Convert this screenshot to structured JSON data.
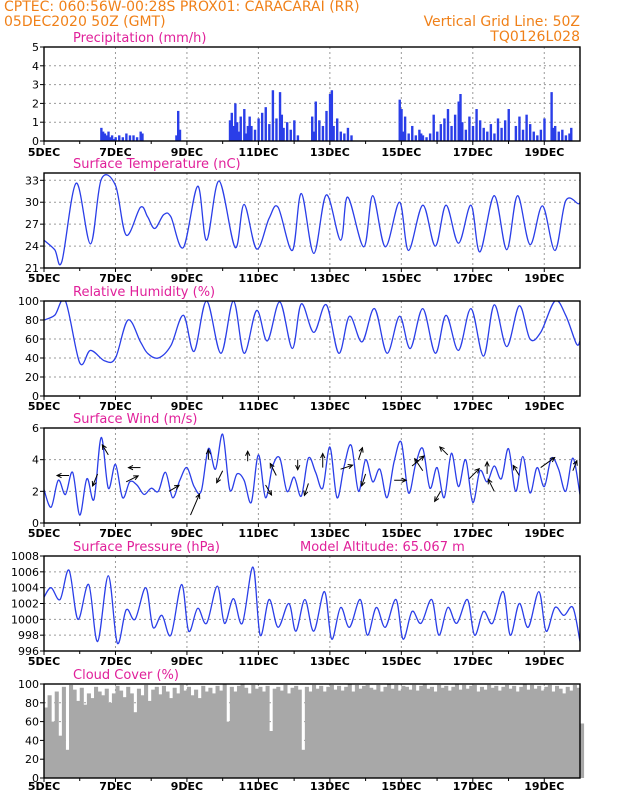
{
  "header": {
    "title": "CPTEC:   060:56W-00:28S   PROX01: CARACARAI (RR)",
    "datetime": "05DEC2020 50Z (GMT)",
    "grid_note": "Vertical Grid Line: 50Z",
    "code": "TQ0126L028"
  },
  "colors": {
    "header": "#f08018",
    "title": "#e0209a",
    "line": "#2a3ee8",
    "bar": "#2a3ee8",
    "cloud": "#a8a8a8",
    "grid": "#9a9a9a"
  },
  "x_axis": {
    "start_day": 5,
    "end_day": 20,
    "tick_days": [
      5,
      7,
      9,
      11,
      13,
      15,
      17,
      19
    ],
    "tick_labels": [
      "5DEC",
      "7DEC",
      "9DEC",
      "11DEC",
      "13DEC",
      "15DEC",
      "17DEC",
      "19DEC"
    ]
  },
  "chart_data": [
    {
      "type": "bar",
      "title": "Precipitation (mm/h)",
      "ylim": [
        0,
        5
      ],
      "yticks": [
        0,
        1,
        2,
        3,
        4,
        5
      ],
      "x": [
        6.6,
        6.65,
        6.7,
        6.75,
        6.8,
        6.85,
        6.9,
        6.95,
        7.0,
        7.1,
        7.2,
        7.3,
        7.4,
        7.5,
        7.6,
        7.7,
        7.75,
        8.7,
        8.75,
        8.8,
        10.2,
        10.25,
        10.3,
        10.35,
        10.4,
        10.45,
        10.5,
        10.6,
        10.65,
        10.7,
        10.75,
        10.8,
        10.9,
        11.0,
        11.1,
        11.2,
        11.3,
        11.4,
        11.5,
        11.6,
        11.65,
        11.7,
        11.8,
        11.9,
        12.0,
        12.1,
        12.5,
        12.55,
        12.6,
        12.7,
        12.8,
        12.9,
        13.0,
        13.05,
        13.1,
        13.2,
        13.3,
        13.4,
        13.5,
        13.6,
        14.95,
        15.0,
        15.05,
        15.1,
        15.2,
        15.3,
        15.4,
        15.5,
        15.55,
        15.6,
        15.7,
        15.8,
        15.9,
        16.0,
        16.1,
        16.2,
        16.3,
        16.4,
        16.5,
        16.6,
        16.65,
        16.7,
        16.8,
        16.9,
        17.0,
        17.1,
        17.2,
        17.3,
        17.4,
        17.5,
        17.6,
        17.7,
        17.8,
        17.9,
        18.0,
        18.2,
        18.3,
        18.4,
        18.5,
        18.6,
        18.7,
        18.8,
        18.9,
        19.0,
        19.2,
        19.25,
        19.3,
        19.4,
        19.5,
        19.6,
        19.7,
        19.75
      ],
      "values": [
        0.7,
        0.5,
        0.4,
        0.3,
        0.5,
        0.2,
        0.3,
        0.1,
        0.2,
        0.3,
        0.2,
        0.4,
        0.3,
        0.3,
        0.2,
        0.5,
        0.4,
        0.3,
        1.6,
        0.6,
        1.1,
        1.5,
        0.8,
        2.0,
        1.0,
        0.5,
        1.3,
        1.7,
        0.4,
        0.8,
        1.3,
        0.8,
        0.6,
        1.2,
        1.5,
        1.8,
        0.9,
        2.7,
        1.2,
        2.6,
        1.4,
        0.7,
        1.0,
        0.6,
        1.1,
        0.3,
        1.3,
        0.5,
        2.1,
        1.1,
        0.8,
        1.6,
        2.5,
        2.7,
        0.8,
        1.2,
        0.5,
        0.4,
        0.7,
        0.3,
        2.2,
        1.7,
        0.5,
        1.3,
        0.4,
        0.8,
        0.3,
        0.6,
        0.4,
        0.3,
        0.2,
        0.4,
        1.4,
        0.5,
        0.9,
        1.2,
        1.7,
        0.8,
        1.4,
        2.1,
        2.5,
        1.0,
        0.6,
        1.3,
        0.8,
        1.7,
        1.1,
        0.7,
        0.5,
        0.9,
        0.4,
        1.2,
        0.7,
        1.1,
        1.7,
        0.8,
        1.3,
        0.6,
        1.4,
        0.9,
        0.5,
        0.3,
        0.6,
        1.2,
        2.6,
        0.7,
        0.8,
        0.5,
        0.6,
        0.3,
        0.4,
        0.7
      ]
    },
    {
      "type": "line",
      "title": "Surface Temperature (nC)",
      "ylim": [
        21,
        34
      ],
      "yticks": [
        21,
        24,
        27,
        30,
        33
      ],
      "x": [
        5.0,
        5.3,
        5.5,
        5.9,
        6.3,
        6.6,
        7.0,
        7.3,
        7.7,
        7.9,
        8.1,
        8.35,
        8.55,
        8.9,
        9.3,
        9.55,
        9.9,
        10.35,
        10.6,
        10.95,
        11.3,
        11.55,
        11.95,
        12.2,
        12.55,
        12.9,
        13.3,
        13.5,
        13.95,
        14.2,
        14.55,
        14.95,
        15.2,
        15.6,
        15.95,
        16.25,
        16.6,
        16.95,
        17.2,
        17.6,
        17.95,
        18.25,
        18.6,
        18.95,
        19.3,
        19.6,
        19.95,
        20.0
      ],
      "values": [
        24.8,
        23.5,
        21.9,
        32.6,
        24.3,
        33.1,
        32.3,
        25.5,
        29.3,
        28.0,
        26.4,
        28.3,
        28.0,
        23.8,
        32.2,
        24.8,
        32.9,
        23.8,
        29.7,
        23.6,
        27.8,
        29.3,
        23.4,
        31.2,
        23.0,
        31.0,
        24.8,
        30.7,
        23.9,
        30.9,
        23.9,
        30.0,
        23.4,
        29.6,
        24.0,
        29.6,
        24.4,
        29.6,
        23.2,
        30.9,
        23.5,
        30.9,
        24.2,
        29.5,
        23.4,
        30.2,
        29.8,
        30.0
      ]
    },
    {
      "type": "line",
      "title": "Relative Humidity (%)",
      "ylim": [
        0,
        100
      ],
      "yticks": [
        0,
        20,
        40,
        60,
        80,
        100
      ],
      "x": [
        5.0,
        5.3,
        5.6,
        6.0,
        6.3,
        6.7,
        7.0,
        7.35,
        7.7,
        7.9,
        8.2,
        8.55,
        8.9,
        9.2,
        9.55,
        9.95,
        10.3,
        10.6,
        10.95,
        11.25,
        11.6,
        11.95,
        12.2,
        12.55,
        12.9,
        13.25,
        13.55,
        13.9,
        14.25,
        14.6,
        14.95,
        15.25,
        15.6,
        15.95,
        16.25,
        16.6,
        16.95,
        17.3,
        17.6,
        17.95,
        18.3,
        18.6,
        18.9,
        19.3,
        19.6,
        19.9,
        20.0
      ],
      "values": [
        80,
        85,
        100,
        35,
        48,
        37,
        40,
        80,
        57,
        45,
        40,
        53,
        85,
        47,
        100,
        45,
        100,
        45,
        90,
        58,
        99,
        50,
        97,
        67,
        96,
        45,
        84,
        57,
        92,
        45,
        84,
        50,
        92,
        45,
        85,
        48,
        92,
        42,
        96,
        52,
        95,
        60,
        67,
        100,
        85,
        55,
        58
      ]
    },
    {
      "type": "line",
      "title": "Surface Wind (m/s)",
      "ylim": [
        0,
        6
      ],
      "yticks": [
        0,
        2,
        4,
        6
      ],
      "x": [
        5.0,
        5.2,
        5.4,
        5.6,
        5.8,
        6.0,
        6.2,
        6.4,
        6.6,
        6.8,
        7.0,
        7.2,
        7.4,
        7.6,
        7.8,
        8.0,
        8.2,
        8.4,
        8.6,
        8.8,
        9.0,
        9.2,
        9.4,
        9.6,
        9.8,
        10.0,
        10.2,
        10.4,
        10.6,
        10.8,
        11.0,
        11.2,
        11.4,
        11.6,
        11.8,
        12.0,
        12.2,
        12.4,
        12.6,
        12.8,
        13.0,
        13.2,
        13.4,
        13.6,
        13.8,
        14.0,
        14.2,
        14.4,
        14.6,
        14.8,
        15.0,
        15.2,
        15.4,
        15.6,
        15.8,
        16.0,
        16.2,
        16.4,
        16.6,
        16.8,
        17.0,
        17.2,
        17.4,
        17.6,
        17.8,
        18.0,
        18.2,
        18.4,
        18.6,
        18.8,
        19.0,
        19.2,
        19.4,
        19.6,
        19.8,
        20.0
      ],
      "values": [
        2.1,
        1.0,
        2.7,
        1.8,
        3.2,
        0.5,
        2.8,
        1.5,
        5.4,
        2.2,
        3.7,
        1.6,
        2.6,
        2.4,
        1.8,
        2.2,
        2.0,
        3.2,
        1.6,
        2.7,
        3.5,
        2.3,
        2.0,
        4.7,
        3.4,
        5.6,
        2.1,
        3.1,
        2.7,
        1.3,
        4.3,
        1.6,
        3.6,
        4.1,
        2.0,
        2.9,
        1.7,
        4.1,
        3.2,
        2.2,
        4.8,
        1.6,
        3.6,
        4.9,
        2.0,
        4.0,
        2.6,
        3.4,
        1.6,
        3.9,
        5.1,
        1.9,
        3.7,
        4.7,
        2.2,
        3.5,
        1.6,
        4.4,
        2.3,
        4.0,
        1.3,
        3.3,
        2.6,
        3.6,
        2.8,
        4.7,
        2.0,
        4.2,
        1.9,
        3.5,
        2.3,
        4.1,
        3.4,
        2.0,
        4.1,
        1.8
      ],
      "vectors": [
        {
          "x": 5.7,
          "y": 3.0,
          "dx": -12,
          "dy": 0
        },
        {
          "x": 6.5,
          "y": 3.1,
          "dx": -5,
          "dy": 12
        },
        {
          "x": 6.8,
          "y": 4.3,
          "dx": -6,
          "dy": -10
        },
        {
          "x": 7.3,
          "y": 2.6,
          "dx": 12,
          "dy": -6
        },
        {
          "x": 7.7,
          "y": 3.5,
          "dx": -12,
          "dy": 0
        },
        {
          "x": 8.5,
          "y": 2.0,
          "dx": 10,
          "dy": -6
        },
        {
          "x": 9.1,
          "y": 0.5,
          "dx": 9,
          "dy": -21
        },
        {
          "x": 9.6,
          "y": 4.0,
          "dx": 0,
          "dy": -10
        },
        {
          "x": 10.0,
          "y": 3.3,
          "dx": -6,
          "dy": 12
        },
        {
          "x": 10.7,
          "y": 3.9,
          "dx": 0,
          "dy": -10
        },
        {
          "x": 11.2,
          "y": 2.4,
          "dx": 6,
          "dy": 10
        },
        {
          "x": 11.5,
          "y": 3.0,
          "dx": -6,
          "dy": -12
        },
        {
          "x": 12.1,
          "y": 4.0,
          "dx": 0,
          "dy": 10
        },
        {
          "x": 12.4,
          "y": 2.5,
          "dx": -4,
          "dy": 12
        },
        {
          "x": 12.8,
          "y": 3.5,
          "dx": 0,
          "dy": -14
        },
        {
          "x": 13.3,
          "y": 3.4,
          "dx": 12,
          "dy": -4
        },
        {
          "x": 13.8,
          "y": 4.0,
          "dx": 4,
          "dy": -12
        },
        {
          "x": 14.0,
          "y": 3.1,
          "dx": -4,
          "dy": 12
        },
        {
          "x": 14.8,
          "y": 2.7,
          "dx": 12,
          "dy": 0
        },
        {
          "x": 15.3,
          "y": 3.6,
          "dx": 12,
          "dy": -10
        },
        {
          "x": 15.6,
          "y": 3.3,
          "dx": -8,
          "dy": -12
        },
        {
          "x": 16.1,
          "y": 2.0,
          "dx": -6,
          "dy": 10
        },
        {
          "x": 16.3,
          "y": 4.3,
          "dx": -8,
          "dy": -8
        },
        {
          "x": 16.9,
          "y": 2.8,
          "dx": 10,
          "dy": -10
        },
        {
          "x": 17.4,
          "y": 3.1,
          "dx": 0,
          "dy": -12
        },
        {
          "x": 17.6,
          "y": 2.0,
          "dx": -6,
          "dy": -12
        },
        {
          "x": 18.3,
          "y": 3.0,
          "dx": -6,
          "dy": -10
        },
        {
          "x": 18.9,
          "y": 3.5,
          "dx": 14,
          "dy": -10
        },
        {
          "x": 19.8,
          "y": 3.3,
          "dx": 4,
          "dy": -10
        }
      ]
    },
    {
      "type": "line",
      "title": "Surface Pressure (hPa)",
      "annotation": "Model Altitude: 65.067 m",
      "ylim": [
        996,
        1008
      ],
      "yticks": [
        996,
        998,
        1000,
        1002,
        1004,
        1006,
        1008
      ],
      "x": [
        5.0,
        5.2,
        5.45,
        5.7,
        5.95,
        6.25,
        6.5,
        6.8,
        7.05,
        7.3,
        7.55,
        7.85,
        8.05,
        8.3,
        8.55,
        8.85,
        9.05,
        9.3,
        9.55,
        9.85,
        10.05,
        10.3,
        10.55,
        10.85,
        11.05,
        11.3,
        11.55,
        11.85,
        12.05,
        12.3,
        12.55,
        12.85,
        13.05,
        13.3,
        13.55,
        13.85,
        14.05,
        14.3,
        14.55,
        14.85,
        15.05,
        15.3,
        15.55,
        15.85,
        16.05,
        16.3,
        16.55,
        16.85,
        17.05,
        17.3,
        17.55,
        17.85,
        18.05,
        18.3,
        18.55,
        18.85,
        19.05,
        19.3,
        19.55,
        19.8,
        20.0
      ],
      "values": [
        1002.8,
        1004.0,
        1002.5,
        1006.2,
        1000.0,
        1004.4,
        997.2,
        1005.5,
        997.0,
        1001.2,
        1000.0,
        1004.0,
        999.0,
        1000.5,
        998.0,
        1004.4,
        998.5,
        1001.4,
        999.5,
        1004.2,
        999.5,
        1002.6,
        999.5,
        1006.6,
        998.0,
        1002.5,
        999.0,
        1002.0,
        998.5,
        1002.5,
        998.5,
        1003.5,
        997.5,
        1001.5,
        999.0,
        1002.5,
        998.0,
        1001.5,
        999.0,
        1002.5,
        997.5,
        1001.0,
        999.5,
        1002.5,
        998.0,
        1001.5,
        999.5,
        1002.5,
        998.0,
        1001.0,
        999.5,
        1003.5,
        998.0,
        1002.0,
        999.0,
        1003.5,
        998.5,
        1001.5,
        1000.5,
        1001.5,
        997.2
      ]
    },
    {
      "type": "area",
      "title": "Cloud Cover (%)",
      "ylim": [
        0,
        100
      ],
      "yticks": [
        0,
        20,
        40,
        60,
        80,
        100
      ],
      "x": [
        5.0,
        5.1,
        5.2,
        5.3,
        5.4,
        5.5,
        5.6,
        5.7,
        5.8,
        5.9,
        6.0,
        6.1,
        6.2,
        6.3,
        6.4,
        6.5,
        6.6,
        6.7,
        6.8,
        6.9,
        7.0,
        7.1,
        7.2,
        7.3,
        7.4,
        7.5,
        7.6,
        7.7,
        7.8,
        7.9,
        8.0,
        8.1,
        8.2,
        8.3,
        8.4,
        8.5,
        8.6,
        8.7,
        8.8,
        8.9,
        9.0,
        9.1,
        9.2,
        9.3,
        9.4,
        9.5,
        9.6,
        9.7,
        9.8,
        9.9,
        10.0,
        10.1,
        10.2,
        10.3,
        10.4,
        10.5,
        10.6,
        10.7,
        10.8,
        10.9,
        11.0,
        11.1,
        11.2,
        11.3,
        11.4,
        11.5,
        11.6,
        11.7,
        11.8,
        11.9,
        12.0,
        12.1,
        12.2,
        12.3,
        12.4,
        12.5,
        12.6,
        12.7,
        12.8,
        12.9,
        13.0,
        13.1,
        13.2,
        13.3,
        13.4,
        13.5,
        13.6,
        13.7,
        13.8,
        13.9,
        14.0,
        14.1,
        14.2,
        14.3,
        14.4,
        14.5,
        14.6,
        14.7,
        14.8,
        14.9,
        15.0,
        15.1,
        15.2,
        15.3,
        15.4,
        15.5,
        15.6,
        15.7,
        15.8,
        15.9,
        16.0,
        16.1,
        16.2,
        16.3,
        16.4,
        16.5,
        16.6,
        16.7,
        16.8,
        16.9,
        17.0,
        17.1,
        17.2,
        17.3,
        17.4,
        17.5,
        17.6,
        17.7,
        17.8,
        17.9,
        18.0,
        18.1,
        18.2,
        18.3,
        18.4,
        18.5,
        18.6,
        18.7,
        18.8,
        18.9,
        19.0,
        19.1,
        19.2,
        19.3,
        19.4,
        19.5,
        19.6,
        19.7,
        19.8,
        19.9,
        20.0
      ],
      "values": [
        75,
        88,
        60,
        92,
        45,
        97,
        30,
        99,
        94,
        82,
        96,
        78,
        90,
        85,
        97,
        92,
        88,
        95,
        80,
        90,
        98,
        93,
        86,
        97,
        90,
        70,
        95,
        88,
        99,
        82,
        94,
        97,
        89,
        98,
        92,
        85,
        96,
        90,
        99,
        93,
        97,
        88,
        94,
        85,
        98,
        92,
        96,
        90,
        98,
        93,
        100,
        60,
        97,
        92,
        98,
        100,
        96,
        90,
        99,
        95,
        97,
        92,
        98,
        50,
        95,
        97,
        93,
        99,
        90,
        96,
        98,
        94,
        30,
        97,
        92,
        99,
        95,
        98,
        92,
        97,
        99,
        94,
        98,
        93,
        97,
        100,
        92,
        99,
        95,
        98,
        99,
        96,
        94,
        99,
        92,
        97,
        100,
        95,
        99,
        93,
        98,
        97,
        94,
        99,
        93,
        98,
        100,
        95,
        97,
        92,
        99,
        96,
        98,
        93,
        97,
        100,
        94,
        99,
        95,
        98,
        99,
        92,
        97,
        94,
        99,
        96,
        98,
        93,
        97,
        99,
        95,
        98,
        92,
        97,
        100,
        94,
        99,
        95,
        98,
        93,
        97,
        99,
        92,
        98,
        95,
        90,
        97,
        93,
        99,
        96,
        58
      ]
    }
  ]
}
